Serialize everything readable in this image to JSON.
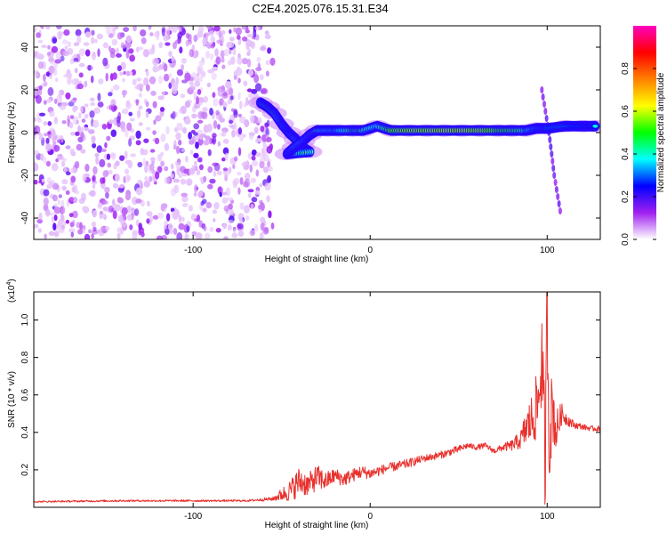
{
  "title": "C2E4.2025.076.15.31.E34",
  "chart_data": [
    {
      "type": "heatmap",
      "xlabel": "Height of straight line (km)",
      "ylabel": "Frequency (Hz)",
      "xlim": [
        -190,
        130
      ],
      "ylim": [
        -50,
        50
      ],
      "xticks": [
        -100,
        0,
        100
      ],
      "xtick_labels": [
        "-100",
        "0",
        "100"
      ],
      "yticks": [
        -40,
        -20,
        0,
        20,
        40
      ],
      "ytick_labels": [
        "-40",
        "-20",
        "0",
        "20",
        "40"
      ],
      "noise_region_x": [
        -190,
        -55
      ],
      "ridge": [
        {
          "x": -62,
          "y": 14,
          "v": 0.55
        },
        {
          "x": -58,
          "y": 12,
          "v": 0.8
        },
        {
          "x": -54,
          "y": 9,
          "v": 0.7
        },
        {
          "x": -50,
          "y": 4,
          "v": 0.55
        },
        {
          "x": -46,
          "y": 0,
          "v": 0.5
        },
        {
          "x": -42,
          "y": -3,
          "v": 0.6
        },
        {
          "x": -38,
          "y": -7,
          "v": 0.75
        },
        {
          "x": -34,
          "y": -9,
          "v": 0.6
        },
        {
          "x": -47,
          "y": -10,
          "v": 0.5
        },
        {
          "x": -43,
          "y": -7,
          "v": 0.55
        },
        {
          "x": -38,
          "y": -4,
          "v": 0.6
        },
        {
          "x": -34,
          "y": -1,
          "v": 0.55
        },
        {
          "x": -30,
          "y": 1,
          "v": 0.7
        },
        {
          "x": -24,
          "y": 1,
          "v": 0.6
        },
        {
          "x": -18,
          "y": 1,
          "v": 0.55
        },
        {
          "x": -10,
          "y": 1,
          "v": 0.75
        },
        {
          "x": -4,
          "y": 1,
          "v": 0.7
        },
        {
          "x": 4,
          "y": 3,
          "v": 0.6
        },
        {
          "x": 12,
          "y": 1,
          "v": 0.85
        },
        {
          "x": 22,
          "y": 1,
          "v": 0.9
        },
        {
          "x": 32,
          "y": 1,
          "v": 0.9
        },
        {
          "x": 42,
          "y": 1,
          "v": 0.92
        },
        {
          "x": 52,
          "y": 1,
          "v": 0.92
        },
        {
          "x": 62,
          "y": 1,
          "v": 0.9
        },
        {
          "x": 72,
          "y": 1,
          "v": 0.85
        },
        {
          "x": 80,
          "y": 1,
          "v": 0.8
        },
        {
          "x": 88,
          "y": 1,
          "v": 0.7
        },
        {
          "x": 94,
          "y": 2,
          "v": 0.5
        },
        {
          "x": 100,
          "y": 2,
          "v": 0.45
        },
        {
          "x": 110,
          "y": 3,
          "v": 0.45
        },
        {
          "x": 120,
          "y": 3,
          "v": 0.4
        },
        {
          "x": 128,
          "y": 3,
          "v": 0.4
        }
      ],
      "streak": [
        [
          97,
          20
        ],
        [
          101,
          0
        ],
        [
          104,
          -20
        ],
        [
          108,
          -40
        ]
      ],
      "colorbar": {
        "label": "Normalized spectral amplitude",
        "range": [
          0,
          1
        ],
        "ticks": [
          0.0,
          0.2,
          0.4,
          0.6,
          0.8
        ],
        "tick_labels": [
          "0.0",
          "0.2",
          "0.4",
          "0.6",
          "0.8"
        ],
        "colors": [
          "#ffffff",
          "#a020f0",
          "#0000ff",
          "#00ffff",
          "#00ff00",
          "#ffff00",
          "#ff8000",
          "#ff0000",
          "#ff00c0"
        ]
      }
    },
    {
      "type": "line",
      "xlabel": "Height of straight line (km)",
      "ylabel": "SNR (10 * v/v)",
      "y_multiplier": "(x10",
      "y_multiplier_exp": "4",
      "y_multiplier_close": ")",
      "xlim": [
        -190,
        130
      ],
      "ylim": [
        0,
        1.15
      ],
      "xticks": [
        -100,
        0,
        100
      ],
      "xtick_labels": [
        "-100",
        "0",
        "100"
      ],
      "yticks": [
        0.2,
        0.4,
        0.6,
        0.8,
        1.0
      ],
      "ytick_labels": [
        "0.2",
        "0.4",
        "0.6",
        "0.8",
        "1.0"
      ],
      "series": [
        {
          "color": "#e8302c",
          "x": [
            -190,
            -140,
            -100,
            -70,
            -55,
            -45,
            -40,
            -35,
            -30,
            -25,
            -20,
            -15,
            -10,
            -5,
            0,
            10,
            20,
            30,
            40,
            50,
            55,
            60,
            65,
            70,
            75,
            80,
            85,
            88,
            92,
            95,
            97,
            99,
            100,
            101,
            103,
            105,
            108,
            110,
            115,
            120,
            125,
            130
          ],
          "y": [
            0.03,
            0.035,
            0.035,
            0.035,
            0.045,
            0.09,
            0.14,
            0.12,
            0.16,
            0.14,
            0.17,
            0.15,
            0.17,
            0.19,
            0.18,
            0.21,
            0.23,
            0.26,
            0.28,
            0.31,
            0.33,
            0.32,
            0.33,
            0.3,
            0.32,
            0.33,
            0.36,
            0.42,
            0.48,
            0.56,
            0.8,
            0.2,
            1.14,
            0.35,
            0.55,
            0.4,
            0.5,
            0.48,
            0.44,
            0.43,
            0.42,
            0.42
          ],
          "noise": [
            0.004,
            0.005,
            0.005,
            0.005,
            0.01,
            0.06,
            0.08,
            0.06,
            0.07,
            0.05,
            0.04,
            0.04,
            0.035,
            0.035,
            0.03,
            0.025,
            0.025,
            0.02,
            0.02,
            0.02,
            0.015,
            0.015,
            0.015,
            0.015,
            0.02,
            0.03,
            0.05,
            0.1,
            0.15,
            0.2,
            0.25,
            0.3,
            0.3,
            0.25,
            0.2,
            0.12,
            0.06,
            0.04,
            0.02,
            0.015,
            0.015,
            0.015
          ]
        }
      ]
    }
  ]
}
